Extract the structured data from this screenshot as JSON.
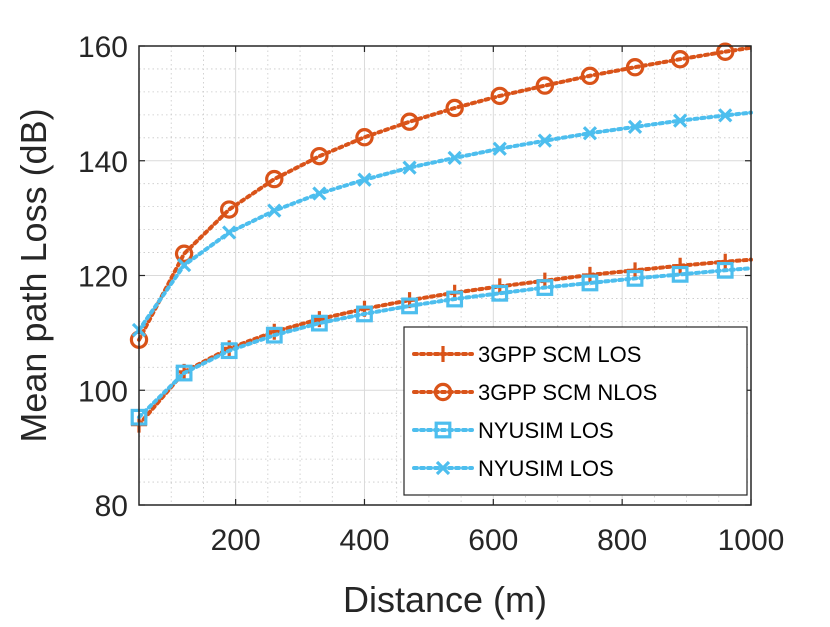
{
  "chart_data": {
    "type": "line",
    "title": "",
    "xlabel": "Distance (m)",
    "ylabel": "Mean path Loss (dB)",
    "xlim": [
      50,
      1000
    ],
    "ylim": [
      80,
      160
    ],
    "xticks": [
      200,
      400,
      600,
      800,
      1000
    ],
    "xtick_labels": [
      "200",
      "400",
      "600",
      "800",
      "1000"
    ],
    "yticks": [
      80,
      100,
      120,
      140,
      160
    ],
    "ytick_labels": [
      "80",
      "100",
      "120",
      "140",
      "160"
    ],
    "grid": true,
    "minor_grid": true,
    "legend_position": "bottom-right",
    "x": [
      50,
      120,
      190,
      260,
      330,
      400,
      470,
      540,
      610,
      680,
      750,
      820,
      890,
      960
    ],
    "series": [
      {
        "name": "3GPP SCM LOS",
        "marker": "plus",
        "color": "#D95319",
        "values": [
          94.0,
          103.2,
          107.3,
          110.2,
          112.4,
          114.2,
          115.7,
          117.0,
          118.1,
          119.1,
          120.1,
          120.9,
          121.7,
          122.4
        ]
      },
      {
        "name": "3GPP SCM NLOS",
        "marker": "circle",
        "color": "#D95319",
        "values": [
          108.8,
          123.8,
          131.5,
          136.8,
          140.8,
          144.1,
          146.8,
          149.2,
          151.3,
          153.1,
          154.8,
          156.3,
          157.7,
          159.0
        ]
      },
      {
        "name": "NYUSIM LOS",
        "marker": "square",
        "color": "#4DBEEE",
        "values": [
          95.3,
          103.0,
          106.9,
          109.6,
          111.7,
          113.3,
          114.7,
          115.9,
          116.9,
          117.9,
          118.7,
          119.5,
          120.2,
          120.9
        ]
      },
      {
        "name": "NYUSIM LOS",
        "marker": "x",
        "color": "#4DBEEE",
        "values": [
          110.5,
          121.8,
          127.5,
          131.3,
          134.3,
          136.7,
          138.8,
          140.5,
          142.1,
          143.5,
          144.8,
          145.9,
          147.0,
          147.9
        ]
      }
    ],
    "line_extension_to": 1000
  }
}
